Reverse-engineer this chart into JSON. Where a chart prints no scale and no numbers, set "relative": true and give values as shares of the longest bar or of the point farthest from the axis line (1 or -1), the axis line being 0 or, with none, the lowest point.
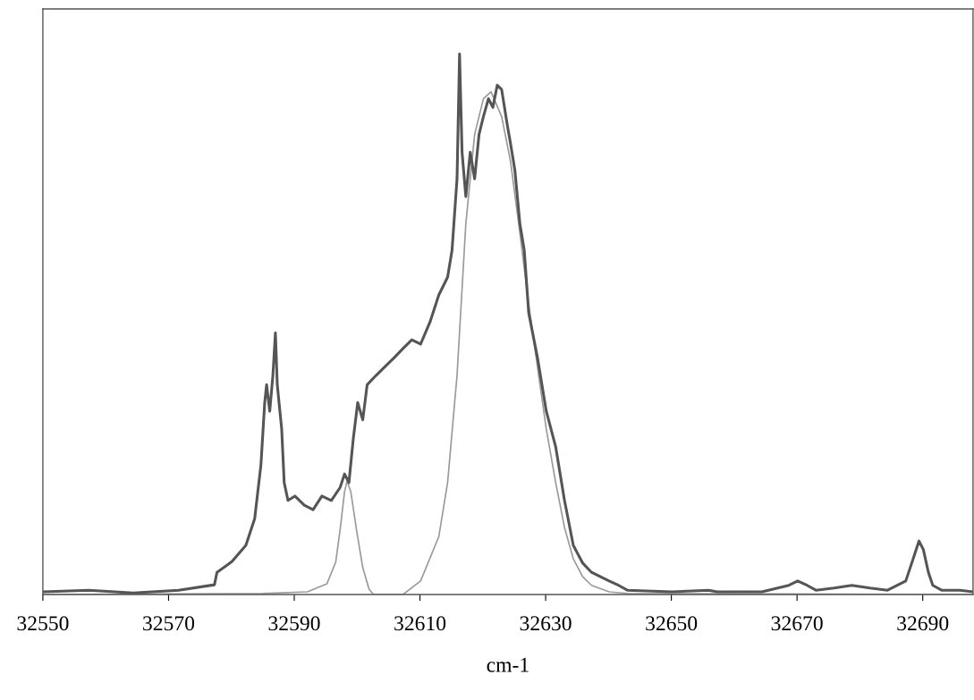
{
  "chart_data": {
    "type": "line",
    "xlabel": "cm-1",
    "relative": true,
    "xlim": [
      32550,
      32698
    ],
    "xticks": [
      32550,
      32570,
      32590,
      32610,
      32630,
      32650,
      32670,
      32690
    ],
    "tick_labels": "x",
    "grid": false,
    "legend": false,
    "marker": "none",
    "line_style": "solid",
    "series": [
      {
        "color": "#555555",
        "x": [
          32550,
          32557.3,
          32564.4,
          32571.6,
          32577.3,
          32577.7,
          32580.1,
          32582.3,
          32583.7,
          32584.7,
          32585.3,
          32585.6,
          32586.1,
          32586.6,
          32587.0,
          32587.3,
          32588.0,
          32588.4,
          32589.0,
          32590.1,
          32591.6,
          32593.0,
          32594.4,
          32595.9,
          32597.3,
          32598.0,
          32598.7,
          32599.4,
          32600.1,
          32600.9,
          32601.6,
          32603.0,
          32604.4,
          32605.9,
          32607.3,
          32608.7,
          32610.1,
          32611.6,
          32613.0,
          32614.4,
          32615.1,
          32615.9,
          32616.3,
          32616.7,
          32617.3,
          32618.0,
          32618.7,
          32619.4,
          32620.1,
          32620.9,
          32621.6,
          32622.3,
          32623.0,
          32623.9,
          32624.4,
          32625.1,
          32625.9,
          32626.6,
          32627.3,
          32628.7,
          32630.1,
          32631.6,
          32633.0,
          32634.4,
          32635.9,
          32637.3,
          32640.1,
          32641.6,
          32643.0,
          32650.1,
          32655.9,
          32657.3,
          32664.4,
          32668.7,
          32670.1,
          32671.6,
          32673.0,
          32675.9,
          32678.7,
          32681.6,
          32684.4,
          32687.3,
          32688.7,
          32689.4,
          32690.1,
          32690.9,
          32691.6,
          32693.0,
          32695.9,
          32698
        ],
        "values": [
          0.005,
          0.008,
          0.003,
          0.008,
          0.018,
          0.041,
          0.061,
          0.091,
          0.14,
          0.24,
          0.355,
          0.388,
          0.339,
          0.405,
          0.484,
          0.388,
          0.306,
          0.207,
          0.174,
          0.182,
          0.165,
          0.157,
          0.182,
          0.174,
          0.198,
          0.223,
          0.207,
          0.289,
          0.355,
          0.323,
          0.388,
          0.405,
          0.421,
          0.438,
          0.455,
          0.471,
          0.463,
          0.504,
          0.554,
          0.587,
          0.636,
          0.769,
          1,
          0.818,
          0.736,
          0.818,
          0.769,
          0.851,
          0.884,
          0.917,
          0.901,
          0.942,
          0.934,
          0.868,
          0.835,
          0.785,
          0.686,
          0.636,
          0.521,
          0.438,
          0.339,
          0.273,
          0.174,
          0.091,
          0.058,
          0.041,
          0.025,
          0.017,
          0.008,
          0.005,
          0.008,
          0.005,
          0.005,
          0.017,
          0.025,
          0.017,
          0.008,
          0.012,
          0.017,
          0.012,
          0.008,
          0.025,
          0.074,
          0.099,
          0.083,
          0.041,
          0.017,
          0.008,
          0.008,
          0.005
        ]
      },
      {
        "color": "#9a9a9a",
        "x": [
          32550,
          32585,
          32592.1,
          32595.2,
          32596.6,
          32597.3,
          32598.0,
          32598.4,
          32599.0,
          32599.9,
          32600.9,
          32601.9,
          32602.6,
          32607.3,
          32610.1,
          32613.0,
          32614.4,
          32615.9,
          32617.3,
          32618.7,
          32620.1,
          32621.3,
          32623.0,
          32624.4,
          32625.9,
          32627.3,
          32628.7,
          32630.1,
          32631.6,
          32633.0,
          32634.4,
          32635.9,
          32637.3,
          32640.1,
          32643.0,
          32698
        ],
        "values": [
          0,
          0.002,
          0.005,
          0.02,
          0.06,
          0.12,
          0.19,
          0.21,
          0.19,
          0.12,
          0.05,
          0.01,
          0,
          0,
          0.025,
          0.107,
          0.207,
          0.405,
          0.686,
          0.851,
          0.917,
          0.93,
          0.884,
          0.802,
          0.669,
          0.537,
          0.421,
          0.306,
          0.207,
          0.124,
          0.066,
          0.033,
          0.017,
          0.005,
          0.002,
          0
        ]
      }
    ]
  }
}
